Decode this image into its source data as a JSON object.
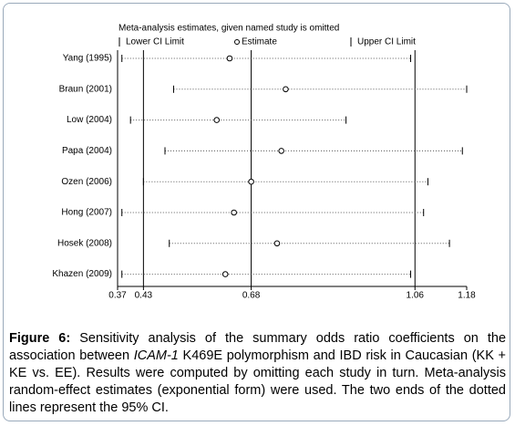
{
  "chart_data": {
    "type": "interval",
    "title": "Meta-analysis estimates, given named study is omitted",
    "categories": [
      "Yang (1995)",
      "Braun (2001)",
      "Low (2004)",
      "Papa (2004)",
      "Ozen (2006)",
      "Hong (2007)",
      "Hosek (2008)",
      "Khazen (2009)"
    ],
    "series": [
      {
        "name": "Lower CI Limit",
        "values": [
          0.38,
          0.5,
          0.4,
          0.48,
          0.43,
          0.38,
          0.49,
          0.38
        ]
      },
      {
        "name": "Estimate",
        "values": [
          0.63,
          0.76,
          0.6,
          0.75,
          0.68,
          0.64,
          0.74,
          0.62
        ]
      },
      {
        "name": "Upper CI Limit",
        "values": [
          1.05,
          1.18,
          0.9,
          1.17,
          1.09,
          1.08,
          1.14,
          1.05
        ]
      }
    ],
    "xlim": [
      0.37,
      1.18
    ],
    "xticks": [
      0.37,
      0.43,
      0.68,
      1.06,
      1.18
    ],
    "reference_lines": [
      0.43,
      0.68,
      1.06
    ]
  },
  "caption": {
    "label": "Figure 6:",
    "text_1": "Sensitivity analysis of the summary odds ratio coefficients on the association between ",
    "gene": "ICAM-1",
    "text_2": " K469E polymorphism and IBD risk in Caucasian (KK + KE vs. EE). Results were computed by omitting each study in turn. Meta-analysis random-effect estimates (exponential form) were used. The two ends of the dotted lines represent the 95% CI."
  }
}
